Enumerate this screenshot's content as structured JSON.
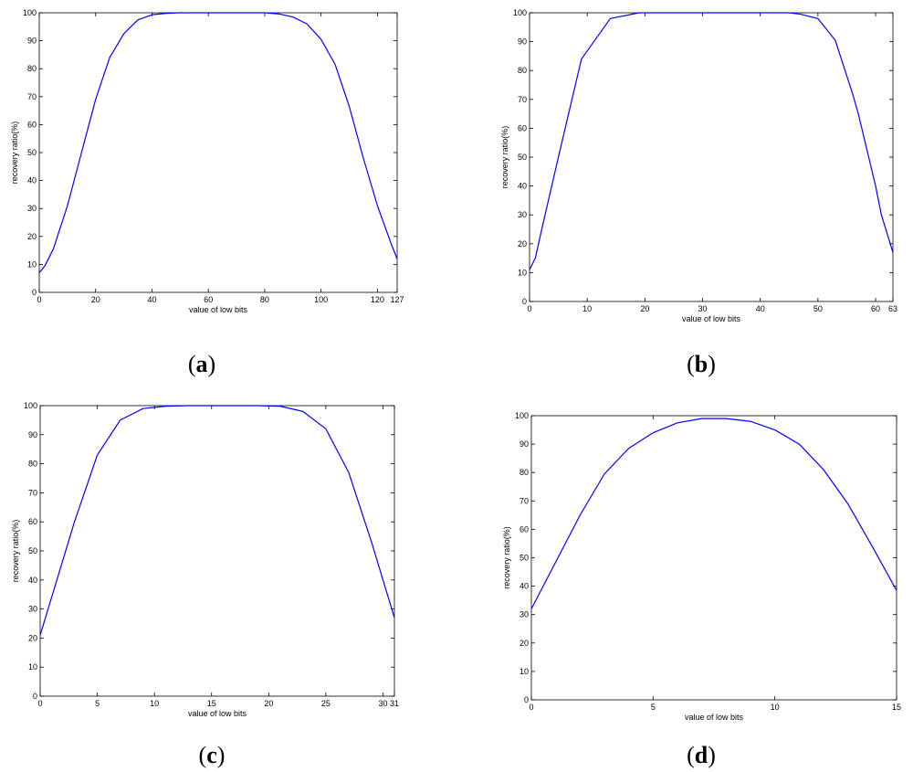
{
  "chart_data": [
    {
      "type": "line",
      "panel_label": "a",
      "xlabel": "value of low bits",
      "ylabel": "recovery ratio(%)",
      "xlim": [
        0,
        127
      ],
      "ylim": [
        0,
        100
      ],
      "xticks": [
        0,
        20,
        40,
        60,
        80,
        100,
        120,
        127
      ],
      "yticks": [
        0,
        10,
        20,
        30,
        40,
        50,
        60,
        70,
        80,
        90,
        100
      ],
      "grid": false,
      "line_color": "#0000ff",
      "series": [
        {
          "x": [
            0,
            2,
            5,
            10,
            15,
            20,
            25,
            30,
            35,
            40,
            45,
            50,
            55,
            60,
            65,
            70,
            75,
            80,
            85,
            90,
            95,
            100,
            105,
            110,
            115,
            120,
            125,
            127
          ],
          "y": [
            7,
            9.5,
            15.5,
            31,
            50,
            69,
            84,
            92.5,
            97.5,
            99.3,
            99.8,
            100,
            100,
            100,
            100,
            100,
            100,
            100,
            99.6,
            98.5,
            96,
            90.5,
            81.5,
            66.5,
            48,
            31,
            17,
            12
          ]
        }
      ]
    },
    {
      "type": "line",
      "panel_label": "b",
      "xlabel": "value of low bits",
      "ylabel": "recovery ratio(%)",
      "xlim": [
        0,
        63
      ],
      "ylim": [
        0,
        100
      ],
      "xticks": [
        0,
        10,
        20,
        30,
        40,
        50,
        60,
        63
      ],
      "yticks": [
        0,
        10,
        20,
        30,
        40,
        50,
        60,
        70,
        80,
        90,
        100
      ],
      "grid": false,
      "line_color": "#0000ff",
      "series": [
        {
          "x": [
            0,
            1,
            2,
            5,
            9,
            14,
            19,
            21,
            30,
            40,
            45,
            47,
            50,
            53,
            56,
            57,
            60,
            61,
            63
          ],
          "y": [
            11,
            15,
            24,
            50,
            84,
            98,
            100,
            100,
            100,
            100,
            100,
            99.5,
            98,
            90.5,
            72,
            65,
            40,
            30,
            17
          ]
        }
      ]
    },
    {
      "type": "line",
      "panel_label": "c",
      "xlabel": "value of low bits",
      "ylabel": "recovery ratio(%)",
      "xlim": [
        0,
        31
      ],
      "ylim": [
        0,
        100
      ],
      "xticks": [
        0,
        5,
        10,
        15,
        20,
        25,
        30,
        31
      ],
      "yticks": [
        0,
        10,
        20,
        30,
        40,
        50,
        60,
        70,
        80,
        90,
        100
      ],
      "grid": false,
      "line_color": "#0000ff",
      "series": [
        {
          "x": [
            0,
            1,
            3,
            5,
            7,
            9,
            11,
            13,
            15,
            17,
            19,
            21,
            23,
            25,
            27,
            29,
            31
          ],
          "y": [
            21,
            34,
            60,
            83,
            95,
            99,
            99.8,
            100,
            100,
            100,
            100,
            99.8,
            98,
            92,
            77,
            53,
            27
          ]
        }
      ]
    },
    {
      "type": "line",
      "panel_label": "d",
      "xlabel": "value of low bits",
      "ylabel": "recovery ratio(%)",
      "xlim": [
        0,
        15
      ],
      "ylim": [
        0,
        100
      ],
      "xticks": [
        0,
        5,
        10,
        15
      ],
      "yticks": [
        0,
        10,
        20,
        30,
        40,
        50,
        60,
        70,
        80,
        90,
        100
      ],
      "grid": false,
      "line_color": "#0000ff",
      "series": [
        {
          "x": [
            0,
            1,
            2,
            3,
            4,
            5,
            6,
            7,
            8,
            9,
            10,
            11,
            12,
            13,
            14,
            15
          ],
          "y": [
            32,
            48.5,
            65,
            79.5,
            88.5,
            94,
            97.5,
            99,
            99,
            98,
            95,
            90,
            81,
            69,
            54,
            38.5
          ]
        }
      ]
    }
  ]
}
